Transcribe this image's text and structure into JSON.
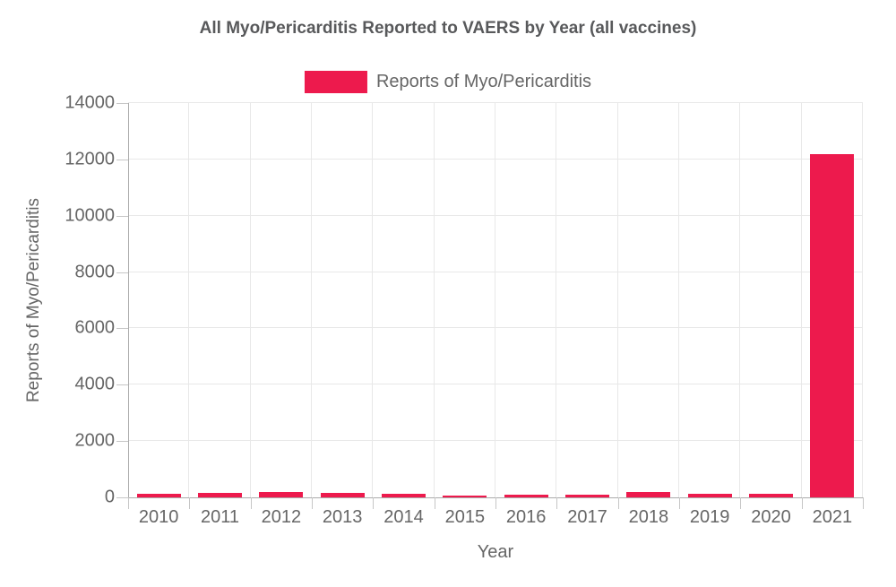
{
  "chart_data": {
    "type": "bar",
    "title": "All Myo/Pericarditis Reported to VAERS by Year (all vaccines)",
    "categories": [
      "2010",
      "2011",
      "2012",
      "2013",
      "2014",
      "2015",
      "2016",
      "2017",
      "2018",
      "2019",
      "2020",
      "2021"
    ],
    "values": [
      130,
      150,
      190,
      170,
      140,
      70,
      100,
      110,
      185,
      130,
      115,
      12200
    ],
    "series_name": "Reports of Myo/Pericarditis",
    "xlabel": "Year",
    "ylabel": "Reports of Myo/Pericarditis",
    "ylim": [
      0,
      14000
    ],
    "yticks": [
      0,
      2000,
      4000,
      6000,
      8000,
      10000,
      12000,
      14000
    ],
    "grid": true,
    "legend_position": "top-center",
    "bar_color": "#ED1A4D"
  },
  "legend": {
    "label": "Reports of Myo/Pericarditis",
    "swatch_color": "#ED1A4D"
  },
  "colors": {
    "bar": "#ED1A4D",
    "grid": "#E8E8E8",
    "axis": "#ABABAB",
    "tick_mark": "#C6C6C6",
    "tick_text": "#666666",
    "title_text": "#58595B"
  }
}
